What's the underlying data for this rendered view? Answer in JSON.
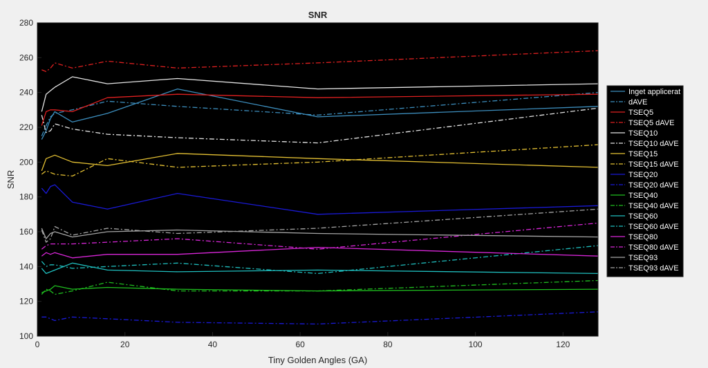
{
  "chart_data": {
    "type": "line",
    "title": "SNR",
    "xlabel": "Tiny Golden Angles (GA)",
    "ylabel": "SNR",
    "xlim": [
      0,
      128
    ],
    "ylim": [
      100,
      280
    ],
    "xticks": [
      0,
      20,
      40,
      60,
      80,
      100,
      120
    ],
    "yticks": [
      100,
      120,
      140,
      160,
      180,
      200,
      220,
      240,
      260,
      280
    ],
    "grid": false,
    "legend_position": "outside-right",
    "background": "#000000",
    "x": [
      1,
      2,
      3,
      4,
      8,
      16,
      32,
      64,
      128
    ],
    "series": [
      {
        "name": "Inget applicerat",
        "color": "#3d8fbf",
        "dash": "solid",
        "values": [
          213,
          218,
          225,
          229,
          223,
          228,
          242,
          226,
          232
        ]
      },
      {
        "name": "dAVE",
        "color": "#3d8fbf",
        "dash": "dashdot",
        "values": [
          215,
          221,
          226,
          228,
          230,
          235,
          232,
          227,
          240
        ]
      },
      {
        "name": "TSEQ5",
        "color": "#e02020",
        "dash": "solid",
        "values": [
          221,
          229,
          230,
          230,
          229,
          237,
          239,
          237,
          239
        ]
      },
      {
        "name": "TSEQ5 dAVE",
        "color": "#e02020",
        "dash": "dashdot",
        "values": [
          253,
          252,
          254,
          257,
          254,
          258,
          254,
          257,
          264
        ]
      },
      {
        "name": "TSEQ10",
        "color": "#e6e6e6",
        "dash": "solid",
        "values": [
          229,
          239,
          241,
          243,
          249,
          245,
          248,
          242,
          245
        ]
      },
      {
        "name": "TSEQ10 dAVE",
        "color": "#e6e6e6",
        "dash": "dashdot",
        "values": [
          227,
          217,
          218,
          222,
          219,
          216,
          214,
          211,
          231
        ]
      },
      {
        "name": "TSEQ15",
        "color": "#e6c233",
        "dash": "solid",
        "values": [
          195,
          202,
          203,
          204,
          200,
          198,
          205,
          202,
          197
        ]
      },
      {
        "name": "TSEQ15 dAVE",
        "color": "#e6c233",
        "dash": "dashdot",
        "values": [
          193,
          195,
          194,
          193,
          192,
          202,
          197,
          200,
          210
        ]
      },
      {
        "name": "TSEQ20",
        "color": "#1a1ad9",
        "dash": "solid",
        "values": [
          185,
          182,
          186,
          187,
          177,
          173,
          182,
          170,
          175
        ]
      },
      {
        "name": "TSEQ20 dAVE",
        "color": "#1a1ad9",
        "dash": "dashdot",
        "values": [
          111,
          111,
          110,
          109,
          111,
          110,
          108,
          107,
          114
        ]
      },
      {
        "name": "TSEQ40",
        "color": "#1fbf1f",
        "dash": "solid",
        "values": [
          125,
          126,
          127,
          129,
          127,
          128,
          127,
          126,
          127
        ]
      },
      {
        "name": "TSEQ40 dAVE",
        "color": "#1fbf1f",
        "dash": "dashdot",
        "values": [
          124,
          127,
          126,
          124,
          126,
          131,
          126,
          126,
          132
        ]
      },
      {
        "name": "TSEQ60",
        "color": "#1fbfbf",
        "dash": "solid",
        "values": [
          139,
          136,
          137,
          138,
          142,
          138,
          137,
          138,
          136
        ]
      },
      {
        "name": "TSEQ60 dAVE",
        "color": "#1fbfbf",
        "dash": "dashdot",
        "values": [
          143,
          140,
          141,
          141,
          139,
          140,
          142,
          136,
          152
        ]
      },
      {
        "name": "TSEQ80",
        "color": "#d926d9",
        "dash": "solid",
        "values": [
          146,
          148,
          147,
          148,
          145,
          147,
          147,
          151,
          146
        ]
      },
      {
        "name": "TSEQ80 dAVE",
        "color": "#d926d9",
        "dash": "dashdot",
        "values": [
          150,
          152,
          153,
          153,
          153,
          154,
          156,
          150,
          165
        ]
      },
      {
        "name": "TSEQ93",
        "color": "#a6a6a6",
        "dash": "solid",
        "values": [
          162,
          156,
          159,
          160,
          157,
          160,
          161,
          159,
          157
        ]
      },
      {
        "name": "TSEQ93 dAVE",
        "color": "#a6a6a6",
        "dash": "dashdot",
        "values": [
          161,
          154,
          156,
          163,
          158,
          162,
          159,
          162,
          173
        ]
      }
    ]
  }
}
